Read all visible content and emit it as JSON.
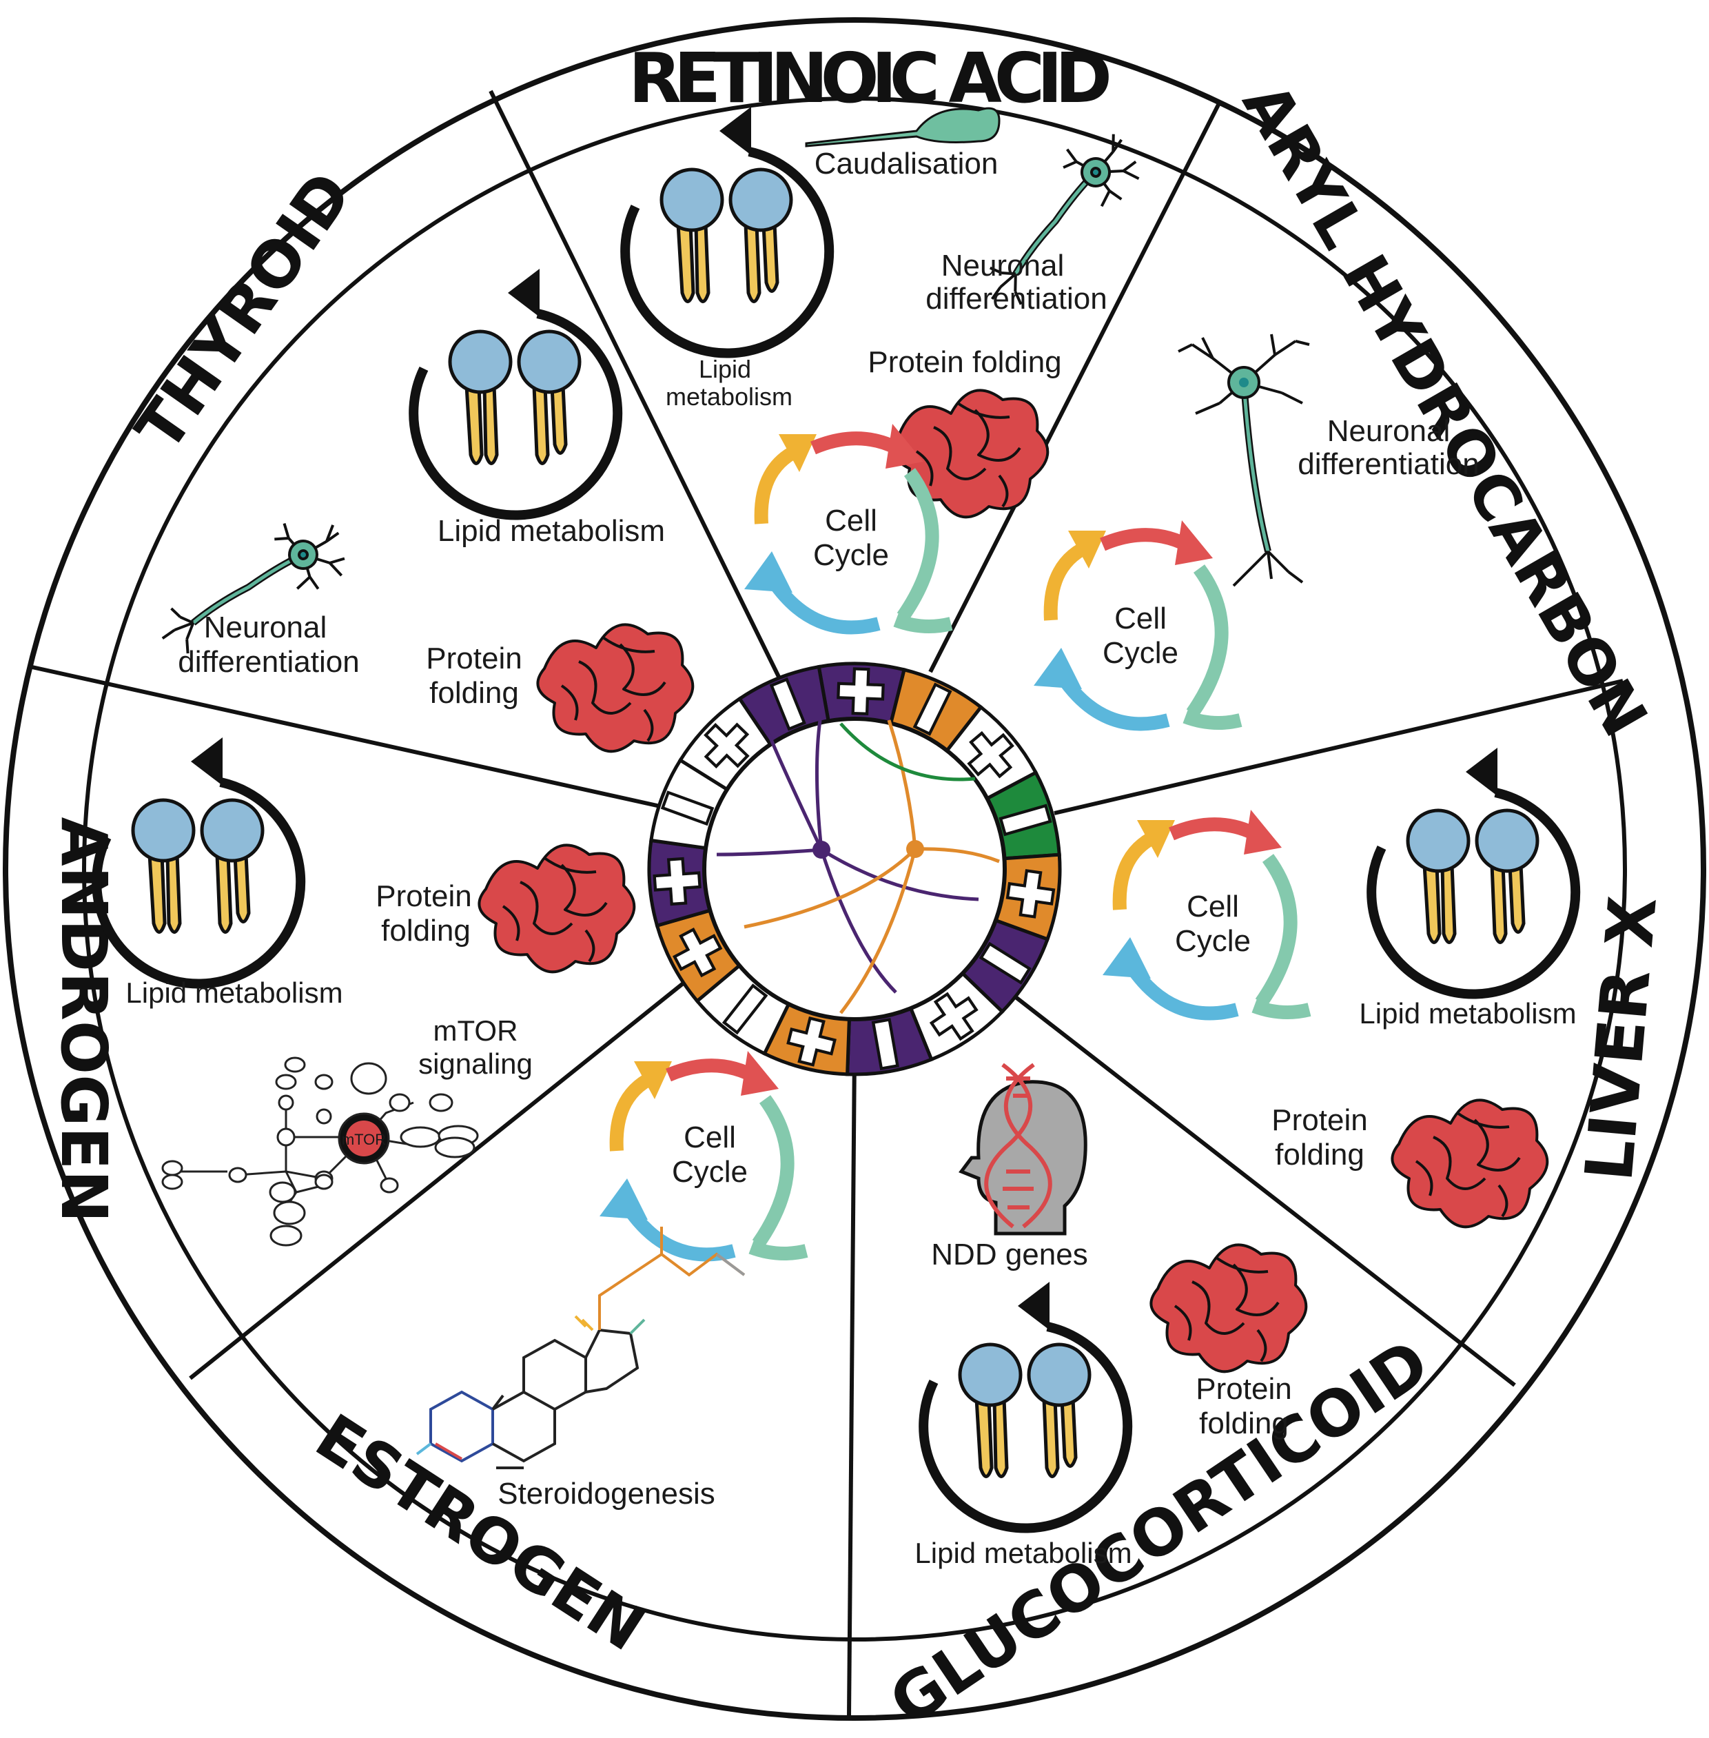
{
  "colors": {
    "outline": "#111111",
    "lipid_head": "#8fbbd8",
    "lipid_tail": "#f0c75a",
    "protein": "#d9484a",
    "neuron": "#5fb59b",
    "cycle_red": "#e05252",
    "cycle_yellow": "#f0b233",
    "cycle_blue": "#5bb7dc",
    "cycle_teal": "#84c9ad",
    "purple": "#4a2570",
    "orange": "#e08a2b",
    "green": "#1e8a3c",
    "fish": "#6fbfa0"
  },
  "sectors": [
    {
      "id": "retinoic_acid",
      "title": "RETINOIC ACID"
    },
    {
      "id": "aryl_hydrocarbon",
      "title": "ARYL HYDROCARBON"
    },
    {
      "id": "liver_x",
      "title": "LIVER X"
    },
    {
      "id": "glucocorticoid",
      "title": "GLUCOCORTICOID"
    },
    {
      "id": "estrogen",
      "title": "ESTROGEN"
    },
    {
      "id": "androgen",
      "title": "ANDROGEN"
    },
    {
      "id": "thyroid",
      "title": "THYROID"
    }
  ],
  "labels": {
    "ra_caudalisation": "Caudalisation",
    "ra_neuronal_1": "Neuronal",
    "ra_neuronal_2": "differentiation",
    "ra_lipid_1": "Lipid",
    "ra_lipid_2": "metabolism",
    "ra_protein": "Protein folding",
    "ra_cell_1": "Cell",
    "ra_cell_2": "Cycle",
    "ah_neuronal_1": "Neuronal",
    "ah_neuronal_2": "differentiation",
    "ah_cell_1": "Cell",
    "ah_cell_2": "Cycle",
    "lx_cell_1": "Cell",
    "lx_cell_2": "Cycle",
    "lx_lipid": "Lipid metabolism",
    "lx_protein_1": "Protein",
    "lx_protein_2": "folding",
    "gc_ndd": "NDD genes",
    "gc_protein_1": "Protein",
    "gc_protein_2": "folding",
    "gc_lipid": "Lipid metabolism",
    "es_cell_1": "Cell",
    "es_cell_2": "Cycle",
    "es_steroid": "Steroidogenesis",
    "an_lipid": "Lipid metabolism",
    "an_protein_1": "Protein",
    "an_protein_2": "folding",
    "an_mtor_1": "mTOR",
    "an_mtor_2": "signaling",
    "an_mtor_node": "mTOR",
    "th_lipid": "Lipid metabolism",
    "th_neuronal_1": "Neuronal",
    "th_neuronal_2": "differentiation",
    "th_protein_1": "Protein",
    "th_protein_2": "folding"
  },
  "ring_segments": [
    {
      "color": "purple",
      "sign": "+"
    },
    {
      "color": "orange",
      "sign": "-"
    },
    {
      "color": "white",
      "sign": "+"
    },
    {
      "color": "green",
      "sign": "-"
    },
    {
      "color": "orange",
      "sign": "+"
    },
    {
      "color": "purple",
      "sign": "-"
    },
    {
      "color": "white",
      "sign": "+"
    },
    {
      "color": "purple",
      "sign": "-"
    },
    {
      "color": "orange",
      "sign": "+"
    },
    {
      "color": "white",
      "sign": "-"
    },
    {
      "color": "orange",
      "sign": "+"
    },
    {
      "color": "purple",
      "sign": "+"
    },
    {
      "color": "white",
      "sign": "-"
    },
    {
      "color": "white",
      "sign": "+"
    },
    {
      "color": "purple",
      "sign": "-"
    }
  ]
}
